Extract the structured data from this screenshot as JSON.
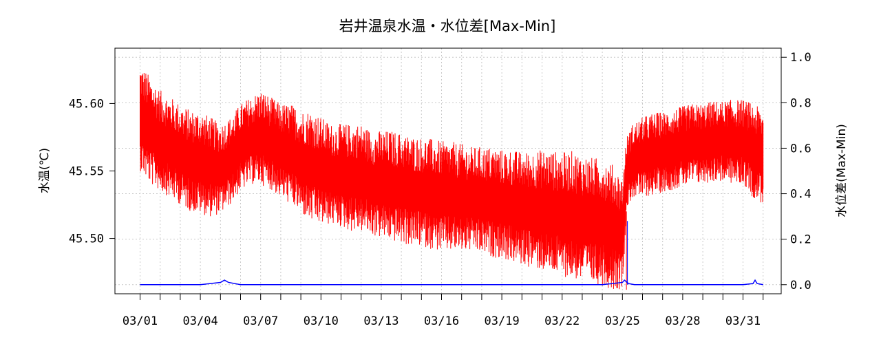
{
  "chart_data": {
    "type": "line",
    "title": "岩井温泉水温・水位差[Max-Min]",
    "ylabel": "水温(℃)",
    "y2label": "水位差(Max-Min)",
    "x_tick_labels": [
      "03/01",
      "03/04",
      "03/07",
      "03/10",
      "03/13",
      "03/16",
      "03/19",
      "03/22",
      "03/25",
      "03/28",
      "03/31"
    ],
    "x_tick_days": [
      1,
      4,
      7,
      10,
      13,
      16,
      19,
      22,
      25,
      28,
      31
    ],
    "x_minor_tick_days": [
      1,
      2,
      3,
      4,
      5,
      6,
      7,
      8,
      9,
      10,
      11,
      12,
      13,
      14,
      15,
      16,
      17,
      18,
      19,
      20,
      21,
      22,
      23,
      24,
      25,
      26,
      27,
      28,
      29,
      30,
      31,
      32
    ],
    "xlim_days": [
      -0.25,
      32.9
    ],
    "ylim": [
      45.459,
      45.641
    ],
    "y_ticks": [
      45.5,
      45.55,
      45.6
    ],
    "y_tick_labels": [
      "45.50",
      "45.55",
      "45.60"
    ],
    "y2lim": [
      -0.04,
      1.04
    ],
    "y2_ticks": [
      0.0,
      0.2,
      0.4,
      0.6,
      0.8,
      1.0
    ],
    "y2_tick_labels": [
      "0.0",
      "0.2",
      "0.4",
      "0.6",
      "0.8",
      "1.0"
    ],
    "grid": true,
    "series": [
      {
        "axis": "left",
        "color": "#ff0000",
        "x_days": [
          1.0,
          1.5,
          2.0,
          2.5,
          3.0,
          3.5,
          4.0,
          4.5,
          5.0,
          5.5,
          6.0,
          6.5,
          7.0,
          7.5,
          8.0,
          8.5,
          9.0,
          9.5,
          10.0,
          10.5,
          11.0,
          11.5,
          12.0,
          12.5,
          13.0,
          13.5,
          14.0,
          14.5,
          15.0,
          15.5,
          16.0,
          16.5,
          17.0,
          17.5,
          18.0,
          18.5,
          19.0,
          19.5,
          20.0,
          20.5,
          21.0,
          21.5,
          22.0,
          22.5,
          23.0,
          23.5,
          24.0,
          24.5,
          25.0,
          25.2,
          25.5,
          26.0,
          26.5,
          27.0,
          27.5,
          28.0,
          28.5,
          29.0,
          29.5,
          30.0,
          30.5,
          31.0,
          31.5,
          32.0
        ],
        "upper": [
          45.63,
          45.62,
          45.61,
          45.605,
          45.6,
          45.595,
          45.595,
          45.59,
          45.585,
          45.59,
          45.6,
          45.605,
          45.61,
          45.605,
          45.6,
          45.6,
          45.595,
          45.595,
          45.59,
          45.585,
          45.585,
          45.585,
          45.585,
          45.58,
          45.58,
          45.58,
          45.578,
          45.576,
          45.575,
          45.574,
          45.572,
          45.572,
          45.57,
          45.568,
          45.568,
          45.568,
          45.566,
          45.566,
          45.564,
          45.565,
          45.566,
          45.565,
          45.564,
          45.565,
          45.562,
          45.56,
          45.56,
          45.555,
          45.545,
          45.575,
          45.585,
          45.59,
          45.593,
          45.594,
          45.596,
          45.598,
          45.6,
          45.6,
          45.602,
          45.602,
          45.603,
          45.603,
          45.6,
          45.595
        ],
        "lower": [
          45.55,
          45.54,
          45.535,
          45.53,
          45.525,
          45.52,
          45.518,
          45.516,
          45.518,
          45.525,
          45.535,
          45.54,
          45.54,
          45.536,
          45.53,
          45.525,
          45.518,
          45.512,
          45.51,
          45.51,
          45.508,
          45.505,
          45.505,
          45.502,
          45.5,
          45.498,
          45.496,
          45.494,
          45.494,
          45.492,
          45.49,
          45.49,
          45.49,
          45.49,
          45.488,
          45.486,
          45.485,
          45.482,
          45.48,
          45.478,
          45.476,
          45.474,
          45.472,
          45.47,
          45.468,
          45.466,
          45.465,
          45.462,
          45.462,
          45.52,
          45.53,
          45.53,
          45.532,
          45.534,
          45.536,
          45.538,
          45.54,
          45.54,
          45.542,
          45.542,
          45.54,
          45.54,
          45.53,
          45.525
        ]
      },
      {
        "axis": "right",
        "color": "#0000ff",
        "x_days": [
          1.0,
          2.0,
          3.0,
          4.0,
          5.0,
          5.2,
          5.4,
          6.0,
          7.0,
          8.0,
          9.0,
          10.0,
          11.0,
          12.0,
          13.0,
          14.0,
          15.0,
          16.0,
          17.0,
          18.0,
          19.0,
          20.0,
          21.0,
          22.0,
          23.0,
          24.0,
          25.0,
          25.1,
          25.3,
          25.6,
          26.0,
          27.0,
          28.0,
          29.0,
          30.0,
          31.0,
          31.5,
          31.6,
          31.7,
          32.0
        ],
        "values": [
          0.0,
          0.0,
          0.0,
          0.0,
          0.01,
          0.02,
          0.01,
          0.0,
          0.0,
          0.0,
          0.0,
          0.0,
          0.0,
          0.0,
          0.0,
          0.0,
          0.0,
          0.0,
          0.0,
          0.0,
          0.0,
          0.0,
          0.0,
          0.0,
          0.0,
          0.0,
          0.01,
          0.02,
          0.005,
          0.0,
          0.0,
          0.0,
          0.0,
          0.0,
          0.0,
          0.0,
          0.005,
          0.02,
          0.005,
          0.0
        ]
      }
    ]
  }
}
